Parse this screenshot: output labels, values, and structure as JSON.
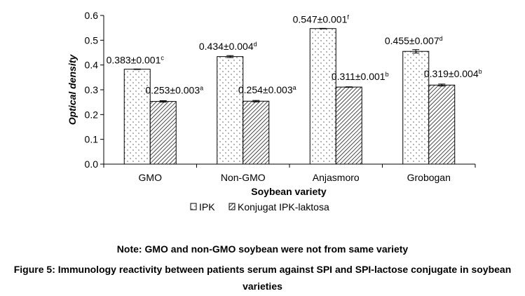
{
  "chart_data": {
    "type": "bar",
    "categories": [
      "GMO",
      "Non-GMO",
      "Anjasmoro",
      "Grobogan"
    ],
    "series": [
      {
        "name": "IPK",
        "values": [
          0.383,
          0.434,
          0.547,
          0.455
        ],
        "errors": [
          0.001,
          0.004,
          0.001,
          0.007
        ],
        "labels": [
          "0.383±0.001",
          "0.434±0.004",
          "0.547±0.001",
          "0.455±0.007"
        ],
        "superscripts": [
          "c",
          "d",
          "f",
          "d"
        ],
        "pattern": "dots"
      },
      {
        "name": "Konjugat IPK-laktosa",
        "values": [
          0.253,
          0.254,
          0.311,
          0.319
        ],
        "errors": [
          0.003,
          0.003,
          0.001,
          0.004
        ],
        "labels": [
          "0.253±0.003",
          "0.254±0.003",
          "0.311±0.001",
          "0.319±0.004"
        ],
        "superscripts": [
          "a",
          "a",
          "b",
          "b"
        ],
        "pattern": "diagonal-hatch"
      }
    ],
    "xlabel": "Soybean variety",
    "ylabel": "Optical density",
    "ylim": [
      0,
      0.6
    ],
    "yticks": [
      "0.0",
      "0.1",
      "0.2",
      "0.3",
      "0.4",
      "0.5",
      "0.6"
    ],
    "grid": false,
    "legend_position": "bottom"
  },
  "note": "Note: GMO and non-GMO soybean were not from same variety",
  "caption": "Figure 5: Immunology reactivity between patients serum against SPI and SPI-lactose conjugate in soybean varieties"
}
